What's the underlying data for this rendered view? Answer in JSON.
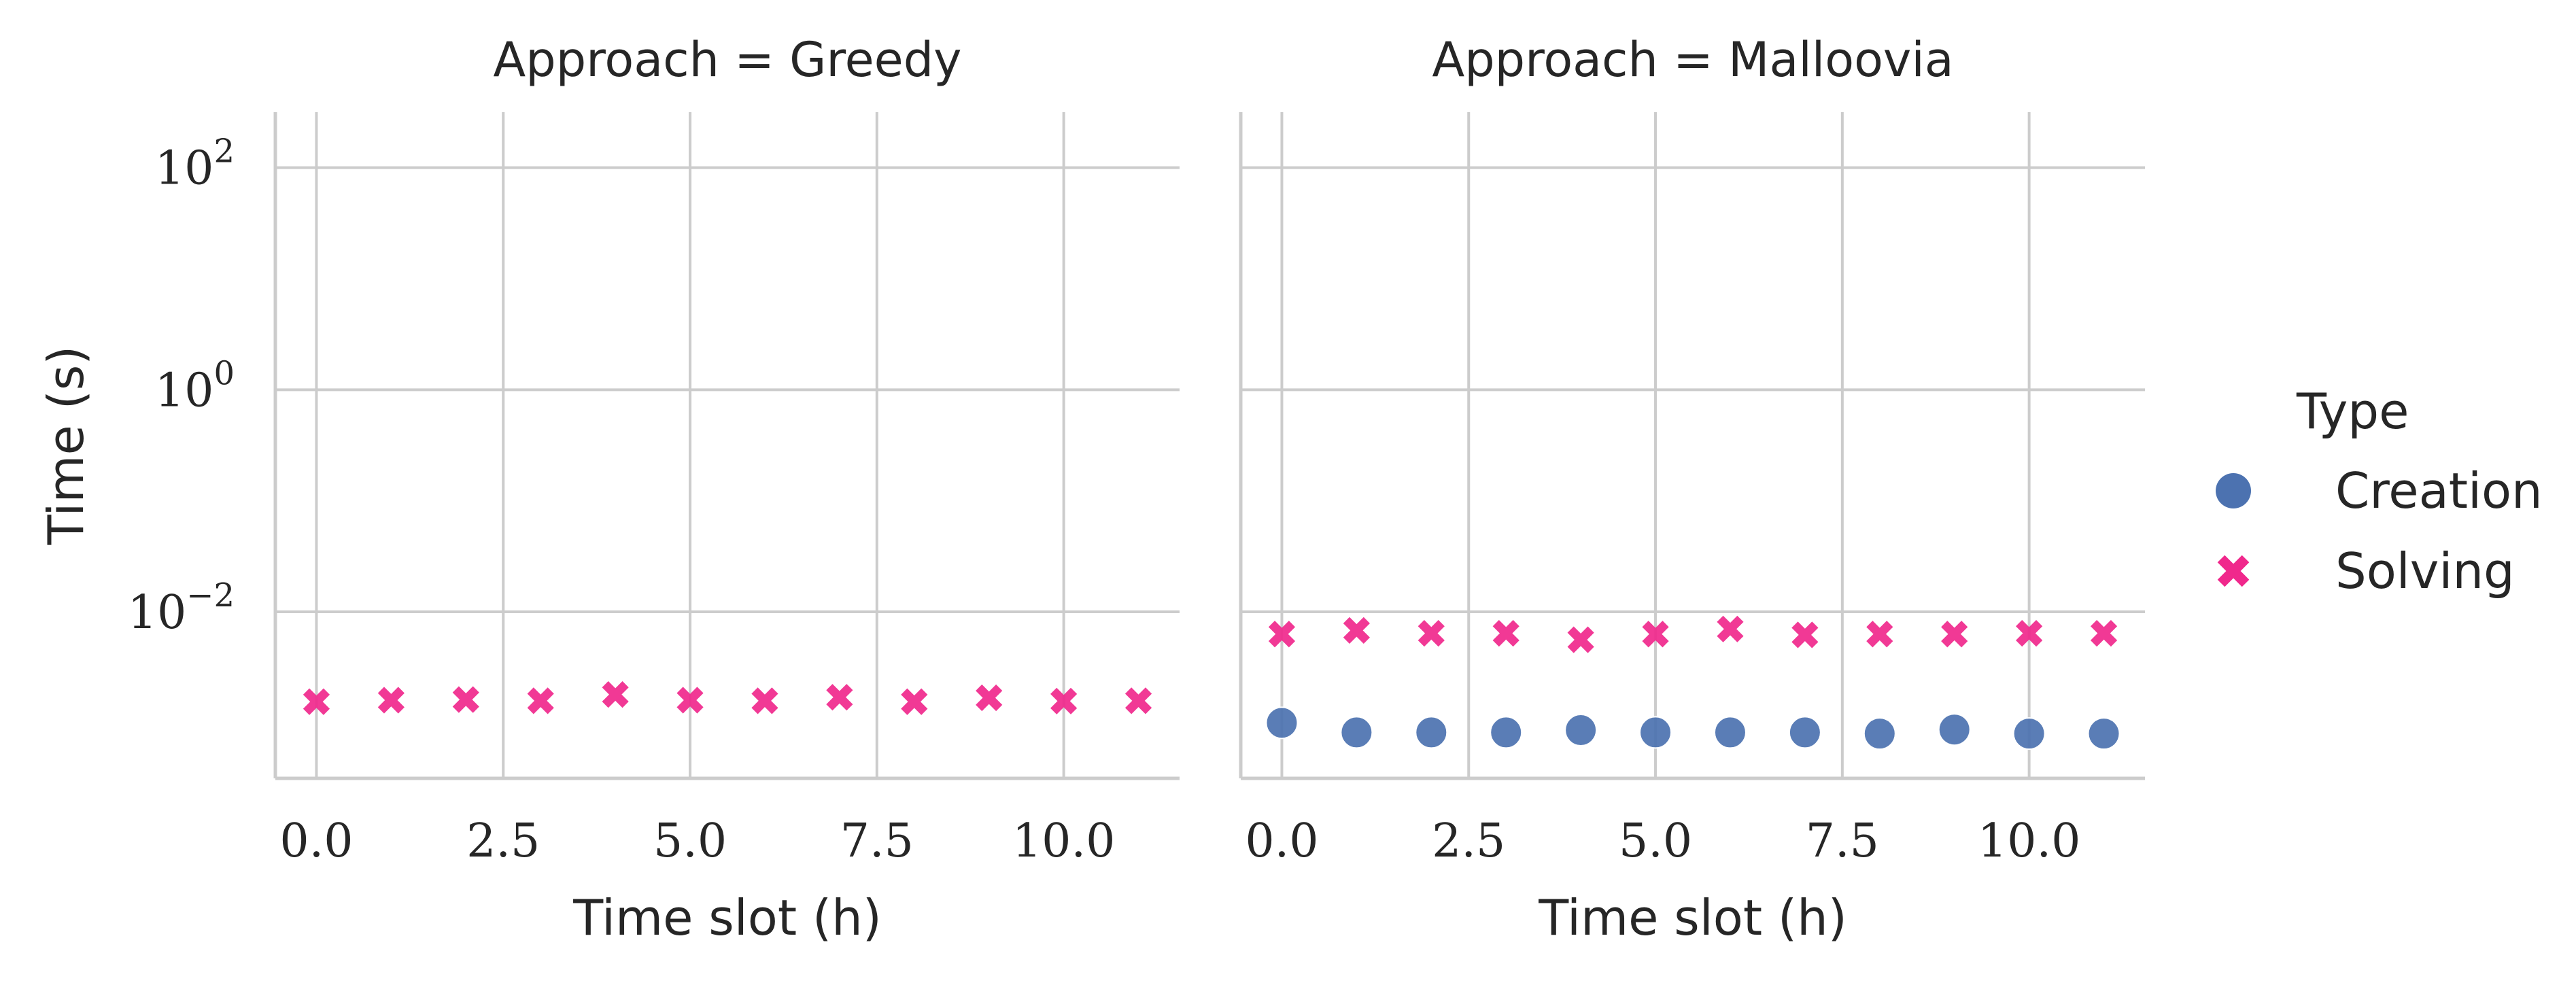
{
  "chart_data": {
    "type": "scatter",
    "facet_label": "Approach",
    "xlabel": "Time slot (h)",
    "ylabel": "Time (s)",
    "yscale": "log",
    "ylim_exp": [
      -3.5,
      2.5
    ],
    "xlim": [
      -0.55,
      11.55
    ],
    "x_ticks": [
      {
        "value": 0,
        "label": "0.0"
      },
      {
        "value": 2.5,
        "label": "2.5"
      },
      {
        "value": 5,
        "label": "5.0"
      },
      {
        "value": 7.5,
        "label": "7.5"
      },
      {
        "value": 10,
        "label": "10.0"
      }
    ],
    "y_ticks": [
      {
        "exp": 2,
        "base": "10",
        "sup": "2"
      },
      {
        "exp": 0,
        "base": "10",
        "sup": "0"
      },
      {
        "exp": -2,
        "base": "10",
        "sup": "−2"
      }
    ],
    "grid": true,
    "legend": {
      "title": "Type",
      "placement": "right",
      "items": [
        {
          "label": "Creation",
          "marker": "circle",
          "color": "#4c72b0"
        },
        {
          "label": "Solving",
          "marker": "x",
          "color": "#f0288c"
        }
      ]
    },
    "panels": [
      {
        "title": "Approach = Greedy",
        "series": [
          {
            "name": "Solving",
            "x": [
              0,
              1,
              2,
              3,
              4,
              5,
              6,
              7,
              8,
              9,
              10,
              11
            ],
            "y": [
              0.00155,
              0.0016,
              0.00162,
              0.00158,
              0.0018,
              0.0016,
              0.00158,
              0.0017,
              0.00155,
              0.00168,
              0.00157,
              0.00158
            ]
          }
        ]
      },
      {
        "title": "Approach = Malloovia",
        "series": [
          {
            "name": "Creation",
            "x": [
              0,
              1,
              2,
              3,
              4,
              5,
              6,
              7,
              8,
              9,
              10,
              11
            ],
            "y": [
              0.001,
              0.00082,
              0.00082,
              0.00082,
              0.00086,
              0.00082,
              0.00082,
              0.00082,
              0.0008,
              0.00087,
              0.0008,
              0.0008
            ]
          },
          {
            "name": "Solving",
            "x": [
              0,
              1,
              2,
              3,
              4,
              5,
              6,
              7,
              8,
              9,
              10,
              11
            ],
            "y": [
              0.0063,
              0.0068,
              0.0064,
              0.0064,
              0.0056,
              0.0063,
              0.007,
              0.0062,
              0.0063,
              0.0063,
              0.0064,
              0.0064
            ]
          }
        ]
      }
    ]
  }
}
